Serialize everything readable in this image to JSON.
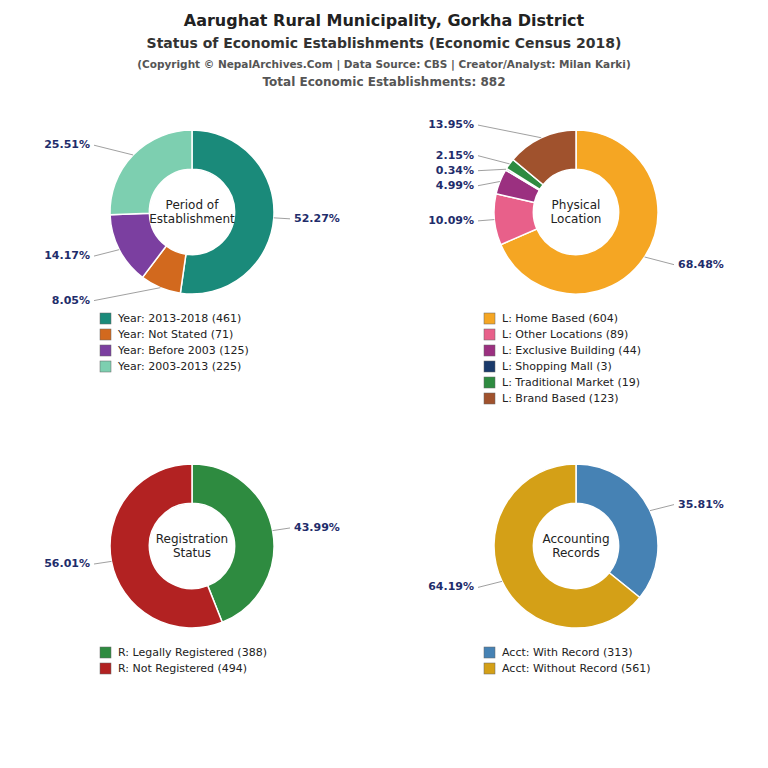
{
  "title": "Aarughat Rural Municipality, Gorkha District",
  "subtitle": "Status of Economic Establishments (Economic Census 2018)",
  "annotations": [
    "(Copyright © NepalArchives.Com | Data Source: CBS | Creator/Analyst: Milan Karki)",
    "Total Economic Establishments: 882"
  ],
  "chart_data": [
    {
      "type": "pie",
      "title": "Period of\nEstablishment",
      "categories": [
        "Year: 2013-2018 (461)",
        "Year: Not Stated (71)",
        "Year: Before 2003 (125)",
        "Year: 2003-2013 (225)"
      ],
      "values": [
        52.27,
        8.05,
        14.17,
        25.51
      ],
      "value_labels": [
        "52.27%",
        "8.05%",
        "14.17%",
        "25.51%"
      ],
      "colors": [
        "#1a8a7a",
        "#D2691E",
        "#7B3FA0",
        "#7DCFB0"
      ],
      "data_labels": true,
      "legend": "bottom"
    },
    {
      "type": "pie",
      "title": "Physical\nLocation",
      "categories": [
        "L: Home Based (604)",
        "L: Other Locations (89)",
        "L: Exclusive Building (44)",
        "L: Shopping Mall (3)",
        "L: Traditional Market (19)",
        "L: Brand Based (123)"
      ],
      "values": [
        68.48,
        10.09,
        4.99,
        0.34,
        2.15,
        13.95
      ],
      "value_labels": [
        "68.48%",
        "10.09%",
        "4.99%",
        "0.34%",
        "2.15%",
        "13.95%"
      ],
      "colors": [
        "#F5A623",
        "#E8608A",
        "#9B3080",
        "#1A3A6B",
        "#2E8B40",
        "#A0522D"
      ],
      "data_labels": true,
      "legend": "bottom"
    },
    {
      "type": "pie",
      "title": "Registration\nStatus",
      "categories": [
        "R: Legally Registered (388)",
        "R: Not Registered (494)"
      ],
      "values": [
        43.99,
        56.01
      ],
      "value_labels": [
        "43.99%",
        "56.01%"
      ],
      "colors": [
        "#2E8B40",
        "#B22222"
      ],
      "data_labels": true,
      "legend": "bottom"
    },
    {
      "type": "pie",
      "title": "Accounting\nRecords",
      "categories": [
        "Acct: With Record (313)",
        "Acct: Without Record (561)"
      ],
      "values": [
        35.81,
        64.19
      ],
      "value_labels": [
        "35.81%",
        "64.19%"
      ],
      "colors": [
        "#4682B4",
        "#D4A017"
      ],
      "data_labels": true,
      "legend": "bottom"
    }
  ]
}
